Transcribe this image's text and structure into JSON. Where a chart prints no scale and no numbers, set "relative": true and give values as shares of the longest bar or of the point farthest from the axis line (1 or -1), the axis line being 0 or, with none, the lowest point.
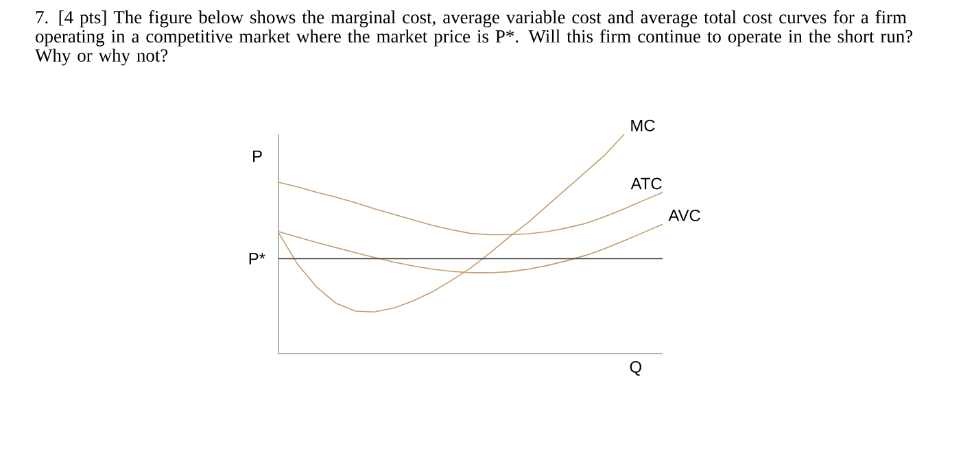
{
  "chart_data": {
    "type": "line",
    "title": "7. [4 pts] The figure below shows the marginal cost, average variable cost and average total cost curves for a firm operating in a competitive market where the market price is P*. Will this firm continue to operate in the short run? Why or why not?",
    "xlabel": "Q",
    "ylabel": "P",
    "relative": true,
    "categories": [
      null,
      null,
      null,
      null,
      null,
      null,
      null,
      null,
      null,
      null,
      null,
      null,
      null,
      null,
      null,
      null,
      null,
      null,
      null,
      null,
      null
    ],
    "series": [
      {
        "name": "MC",
        "color": "#c49a6c",
        "values": [
          0.552,
          0.406,
          0.302,
          0.229,
          0.194,
          0.19,
          0.208,
          0.24,
          0.281,
          0.333,
          0.39,
          0.458,
          0.531,
          0.598,
          0.675,
          0.752,
          0.829,
          0.906,
          1.0,
          null,
          null
        ]
      },
      {
        "name": "ATC",
        "color": "#c49a6c",
        "values": [
          0.781,
          0.76,
          0.735,
          0.713,
          0.688,
          0.66,
          0.635,
          0.61,
          0.585,
          0.565,
          0.548,
          0.542,
          0.542,
          0.546,
          0.556,
          0.573,
          0.594,
          0.625,
          0.66,
          0.698,
          0.735
        ]
      },
      {
        "name": "AVC",
        "color": "#c49a6c",
        "values": [
          0.556,
          0.531,
          0.506,
          0.483,
          0.46,
          0.438,
          0.417,
          0.4,
          0.385,
          0.375,
          0.369,
          0.369,
          0.373,
          0.385,
          0.402,
          0.423,
          0.448,
          0.479,
          0.515,
          0.552,
          0.59
        ]
      }
    ],
    "ref_lines": [
      {
        "axis": "y",
        "value": 0.433,
        "label": "P*",
        "color": "#404040"
      }
    ]
  }
}
